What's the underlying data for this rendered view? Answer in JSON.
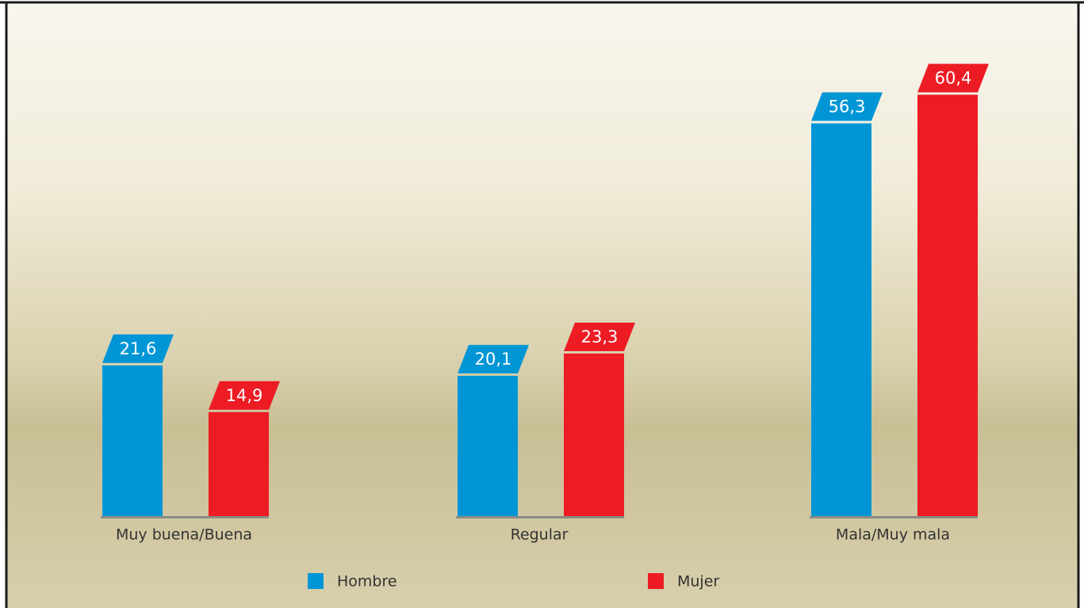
{
  "chart_data": {
    "type": "bar",
    "categories": [
      "Muy buena/Buena",
      "Regular",
      "Mala/Muy mala"
    ],
    "series": [
      {
        "name": "Hombre",
        "color": "#0096d6",
        "values": [
          21.6,
          20.1,
          56.3
        ],
        "value_labels": [
          "21,6",
          "20,1",
          "56,3"
        ]
      },
      {
        "name": "Mujer",
        "color": "#ed1c24",
        "values": [
          14.9,
          23.3,
          60.4
        ],
        "value_labels": [
          "14,9",
          "23,3",
          "60,4"
        ]
      }
    ]
  }
}
